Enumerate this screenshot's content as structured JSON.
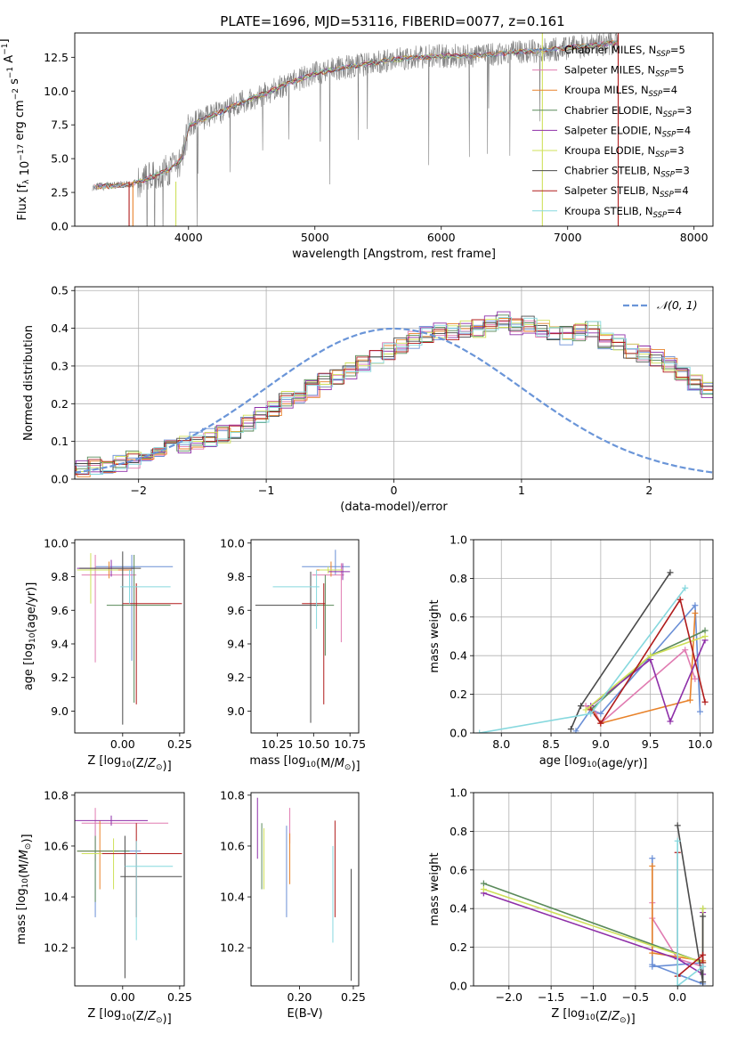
{
  "figure_title": "PLATE=1696, MJD=53116, FIBERID=0077, z=0.161",
  "colors": {
    "Chabrier MILES": "#6a8fd6",
    "Salpeter MILES": "#e07bb1",
    "Kroupa MILES": "#e8822a",
    "Chabrier ELODIE": "#5a8a5a",
    "Salpeter ELODIE": "#8e2fa8",
    "Kroupa ELODIE": "#cfe05a",
    "Chabrier STELIB": "#4a4a4a",
    "Salpeter STELIB": "#b01c1c",
    "Kroupa STELIB": "#86d8de",
    "data": "#808080",
    "normal_curve": "#6a95d8"
  },
  "chart_data": [
    {
      "type": "line",
      "panel": "spectrum",
      "title": "PLATE=1696, MJD=53116, FIBERID=0077, z=0.161",
      "xlabel": "wavelength [Angstrom, rest frame]",
      "ylabel": "Flux [f_λ 10^-17 erg cm^-2 s^-1 A^-1]",
      "xlim": [
        3100,
        8150
      ],
      "ylim": [
        0,
        14.3
      ],
      "xticks": [
        4000,
        5000,
        6000,
        7000,
        8000
      ],
      "yticks": [
        0.0,
        2.5,
        5.0,
        7.5,
        10.0,
        12.5
      ],
      "legend_position": "right",
      "legend": [
        {
          "label": "Chabrier MILES, N",
          "sub": "SSP",
          "eq": "=5"
        },
        {
          "label": "Salpeter MILES, N",
          "sub": "SSP",
          "eq": "=5"
        },
        {
          "label": "Kroupa MILES, N",
          "sub": "SSP",
          "eq": "=4"
        },
        {
          "label": "Chabrier ELODIE, N",
          "sub": "SSP",
          "eq": "=3"
        },
        {
          "label": "Salpeter ELODIE, N",
          "sub": "SSP",
          "eq": "=4"
        },
        {
          "label": "Kroupa ELODIE, N",
          "sub": "SSP",
          "eq": "=3"
        },
        {
          "label": "Chabrier STELIB, N",
          "sub": "SSP",
          "eq": "=3"
        },
        {
          "label": "Salpeter STELIB, N",
          "sub": "SSP",
          "eq": "=4"
        },
        {
          "label": "Kroupa STELIB, N",
          "sub": "SSP",
          "eq": "=4"
        }
      ],
      "continuum": {
        "x": [
          3240,
          3400,
          3550,
          3700,
          3850,
          3950,
          4000,
          4100,
          4250,
          4400,
          4600,
          4800,
          5000,
          5200,
          5400,
          5600,
          5800,
          6000,
          6200,
          6400,
          6600,
          6800,
          7000,
          7200,
          7400
        ],
        "y": [
          2.9,
          3.0,
          3.1,
          3.6,
          4.2,
          5.0,
          7.4,
          7.9,
          8.4,
          9.1,
          9.8,
          10.6,
          11.3,
          11.7,
          12.0,
          12.3,
          12.5,
          12.6,
          12.6,
          12.7,
          12.9,
          13.0,
          13.2,
          13.4,
          13.6
        ]
      },
      "model_edges": [
        3530,
        3560,
        3900,
        6800,
        7400
      ]
    },
    {
      "type": "bar",
      "panel": "residual histogram",
      "xlabel": "(data-model)/error",
      "ylabel": "Normed distribution",
      "xlim": [
        -2.5,
        2.5
      ],
      "ylim": [
        0,
        0.51
      ],
      "xticks": [
        -2,
        -1,
        0,
        1,
        2
      ],
      "yticks": [
        0.0,
        0.1,
        0.2,
        0.3,
        0.4,
        0.5
      ],
      "grid": true,
      "legend": "𝒩(0, 1)",
      "legend_position": "top-right",
      "bin_width": 0.1,
      "base_values": [
        0.02,
        0.025,
        0.03,
        0.035,
        0.04,
        0.045,
        0.05,
        0.06,
        0.07,
        0.08,
        0.09,
        0.1,
        0.11,
        0.12,
        0.13,
        0.15,
        0.17,
        0.19,
        0.21,
        0.22,
        0.24,
        0.26,
        0.27,
        0.29,
        0.31,
        0.32,
        0.34,
        0.35,
        0.37,
        0.38,
        0.39,
        0.39,
        0.4,
        0.4,
        0.41,
        0.42,
        0.4,
        0.41,
        0.4,
        0.39,
        0.38,
        0.39,
        0.4,
        0.37,
        0.36,
        0.34,
        0.33,
        0.32,
        0.3,
        0.28,
        0.26,
        0.24,
        0.22,
        0.2,
        0.19,
        0.17,
        0.15,
        0.13,
        0.12,
        0.1,
        0.09,
        0.08,
        0.07,
        0.06,
        0.055,
        0.05,
        0.045,
        0.04,
        0.035,
        0.03,
        0.025,
        0.02,
        0.02,
        0.015,
        0.015,
        0.01
      ]
    },
    {
      "type": "scatter",
      "panel": "age vs Z",
      "xlabel": "Z [log10(Z/Z☉)]",
      "ylabel": "age [log10(age/yr)]",
      "xlim": [
        -0.21,
        0.27
      ],
      "ylim": [
        8.87,
        10.02
      ],
      "xticks": [
        0.0,
        0.25
      ],
      "yticks": [
        9.0,
        9.2,
        9.4,
        9.6,
        9.8,
        10.0
      ],
      "points": [
        {
          "series": "Chabrier MILES",
          "x": 0.04,
          "xerr": [
            0.16,
            0.18
          ],
          "y": 9.86,
          "yerr": [
            0.56,
            0.07
          ]
        },
        {
          "series": "Salpeter MILES",
          "x": -0.12,
          "xerr": [
            0.06,
            0.18
          ],
          "y": 9.81,
          "yerr": [
            0.52,
            0.12
          ]
        },
        {
          "series": "Kroupa MILES",
          "x": -0.06,
          "xerr": [
            0.12,
            0.1
          ],
          "y": 9.84,
          "yerr": [
            0.05,
            0.05
          ]
        },
        {
          "series": "Chabrier ELODIE",
          "x": 0.05,
          "xerr": [
            0.12,
            0.16
          ],
          "y": 9.63,
          "yerr": [
            0.58,
            0.3
          ]
        },
        {
          "series": "Salpeter ELODIE",
          "x": -0.05,
          "xerr": [
            0.15,
            0.1
          ],
          "y": 9.85,
          "yerr": [
            0.05,
            0.05
          ]
        },
        {
          "series": "Kroupa ELODIE",
          "x": -0.14,
          "xerr": [
            0.06,
            0.12
          ],
          "y": 9.84,
          "yerr": [
            0.2,
            0.1
          ]
        },
        {
          "series": "Chabrier STELIB",
          "x": 0.0,
          "xerr": [
            0.19,
            0.08
          ],
          "y": 9.85,
          "yerr": [
            0.93,
            0.1
          ]
        },
        {
          "series": "Salpeter STELIB",
          "x": 0.06,
          "xerr": [
            0.06,
            0.2
          ],
          "y": 9.64,
          "yerr": [
            0.6,
            0.12
          ]
        },
        {
          "series": "Kroupa STELIB",
          "x": 0.03,
          "xerr": [
            0.04,
            0.18
          ],
          "y": 9.74,
          "yerr": [
            0.1,
            0.1
          ]
        }
      ]
    },
    {
      "type": "scatter",
      "panel": "age vs mass",
      "xlabel": "mass [log10(M/M☉)]",
      "ylabel": "",
      "xlim": [
        10.07,
        10.81
      ],
      "ylim": [
        8.87,
        10.02
      ],
      "xticks": [
        10.25,
        10.5,
        10.75
      ],
      "yticks": [
        9.0,
        9.2,
        9.4,
        9.6,
        9.8,
        10.0
      ],
      "points": [
        {
          "series": "Chabrier MILES",
          "x": 10.65,
          "xerr": [
            0.23,
            0.1
          ],
          "y": 9.86,
          "yerr": [
            0.05,
            0.1
          ]
        },
        {
          "series": "Salpeter MILES",
          "x": 10.69,
          "xerr": [
            0.2,
            0.02
          ],
          "y": 9.81,
          "yerr": [
            0.4,
            0.07
          ]
        },
        {
          "series": "Kroupa MILES",
          "x": 10.62,
          "xerr": [
            0.1,
            0.05
          ],
          "y": 9.84,
          "yerr": [
            0.04,
            0.05
          ]
        },
        {
          "series": "Chabrier ELODIE",
          "x": 10.58,
          "xerr": [
            0.08,
            0.06
          ],
          "y": 9.63,
          "yerr": [
            0.3,
            0.18
          ]
        },
        {
          "series": "Salpeter ELODIE",
          "x": 10.7,
          "xerr": [
            0.1,
            0.05
          ],
          "y": 9.83,
          "yerr": [
            0.05,
            0.05
          ]
        },
        {
          "series": "Kroupa ELODIE",
          "x": 10.6,
          "xerr": [
            0.06,
            0.1
          ],
          "y": 9.84,
          "yerr": [
            0.02,
            0.02
          ]
        },
        {
          "series": "Chabrier STELIB",
          "x": 10.48,
          "xerr": [
            0.38,
            0.05
          ],
          "y": 9.63,
          "yerr": [
            0.7,
            0.2
          ]
        },
        {
          "series": "Salpeter STELIB",
          "x": 10.57,
          "xerr": [
            0.15,
            0.01
          ],
          "y": 9.64,
          "yerr": [
            0.6,
            0.12
          ]
        },
        {
          "series": "Kroupa STELIB",
          "x": 10.52,
          "xerr": [
            0.3,
            0.02
          ],
          "y": 9.74,
          "yerr": [
            0.25,
            0.1
          ]
        }
      ]
    },
    {
      "type": "scatter",
      "panel": "mass weight vs age",
      "xlabel": "age [log10(age/yr)]",
      "ylabel": "mass weight",
      "xlim": [
        7.72,
        10.13
      ],
      "ylim": [
        0,
        1.0
      ],
      "xticks": [
        8.0,
        8.5,
        9.0,
        9.5,
        10.0
      ],
      "yticks": [
        0.0,
        0.2,
        0.4,
        0.6,
        0.8,
        1.0
      ],
      "grid": true,
      "series": [
        {
          "name": "Chabrier MILES",
          "x": [
            8.75,
            8.9,
            9.0,
            9.95,
            10.0
          ],
          "y": [
            0.01,
            0.12,
            0.1,
            0.66,
            0.11
          ]
        },
        {
          "name": "Salpeter MILES",
          "x": [
            8.85,
            8.95,
            9.0,
            9.85,
            9.95
          ],
          "y": [
            0.14,
            0.1,
            0.05,
            0.43,
            0.28
          ]
        },
        {
          "name": "Kroupa MILES",
          "x": [
            8.9,
            9.0,
            9.9,
            9.95
          ],
          "y": [
            0.13,
            0.05,
            0.17,
            0.62
          ]
        },
        {
          "name": "Chabrier ELODIE",
          "x": [
            8.9,
            9.5,
            10.05
          ],
          "y": [
            0.12,
            0.4,
            0.53
          ]
        },
        {
          "name": "Salpeter ELODIE",
          "x": [
            8.9,
            9.5,
            9.7,
            10.05
          ],
          "y": [
            0.14,
            0.38,
            0.06,
            0.48
          ]
        },
        {
          "name": "Kroupa ELODIE",
          "x": [
            8.85,
            9.5,
            10.05
          ],
          "y": [
            0.12,
            0.4,
            0.5
          ]
        },
        {
          "name": "Chabrier STELIB",
          "x": [
            8.7,
            8.8,
            9.7
          ],
          "y": [
            0.02,
            0.14,
            0.83
          ]
        },
        {
          "name": "Salpeter STELIB",
          "x": [
            8.9,
            9.0,
            9.8,
            10.05
          ],
          "y": [
            0.12,
            0.05,
            0.69,
            0.16
          ]
        },
        {
          "name": "Kroupa STELIB",
          "x": [
            7.78,
            8.9,
            9.85
          ],
          "y": [
            0.0,
            0.1,
            0.75
          ]
        }
      ]
    },
    {
      "type": "scatter",
      "panel": "mass vs Z",
      "xlabel": "Z [log10(Z/Z☉)]",
      "ylabel": "mass [log10(M/M☉)]",
      "xlim": [
        -0.21,
        0.27
      ],
      "ylim": [
        10.05,
        10.81
      ],
      "xticks": [
        0.0,
        0.25
      ],
      "yticks": [
        10.2,
        10.4,
        10.6,
        10.8
      ],
      "points": [
        {
          "series": "Chabrier MILES",
          "x": -0.12,
          "xerr": [
            0.08,
            0.2
          ],
          "y": 10.58,
          "yerr": [
            0.26,
            0.12
          ]
        },
        {
          "series": "Salpeter MILES",
          "x": -0.12,
          "xerr": [
            0.06,
            0.32
          ],
          "y": 10.69,
          "yerr": [
            0.15,
            0.06
          ]
        },
        {
          "series": "Kroupa MILES",
          "x": -0.1,
          "xerr": [
            0.1,
            0.08
          ],
          "y": 10.58,
          "yerr": [
            0.15,
            0.12
          ]
        },
        {
          "series": "Chabrier ELODIE",
          "x": -0.12,
          "xerr": [
            0.08,
            0.15
          ],
          "y": 10.58,
          "yerr": [
            0.2,
            0.06
          ]
        },
        {
          "series": "Salpeter ELODIE",
          "x": -0.05,
          "xerr": [
            0.18,
            0.16
          ],
          "y": 10.7,
          "yerr": [
            0.02,
            0.02
          ]
        },
        {
          "series": "Kroupa ELODIE",
          "x": -0.04,
          "xerr": [
            0.14,
            0.08
          ],
          "y": 10.57,
          "yerr": [
            0.14,
            0.06
          ]
        },
        {
          "series": "Chabrier STELIB",
          "x": 0.01,
          "xerr": [
            0.02,
            0.25
          ],
          "y": 10.48,
          "yerr": [
            0.4,
            0.16
          ]
        },
        {
          "series": "Salpeter STELIB",
          "x": 0.06,
          "xerr": [
            0.15,
            0.2
          ],
          "y": 10.57,
          "yerr": [
            0.25,
            0.12
          ]
        },
        {
          "series": "Kroupa STELIB",
          "x": 0.06,
          "xerr": [
            0.05,
            0.16
          ],
          "y": 10.52,
          "yerr": [
            0.29,
            0.1
          ]
        }
      ]
    },
    {
      "type": "scatter",
      "panel": "mass vs E(B-V)",
      "xlabel": "E(B-V)",
      "ylabel": "",
      "xlim": [
        0.155,
        0.255
      ],
      "ylim": [
        10.05,
        10.81
      ],
      "xticks": [
        0.2,
        0.25
      ],
      "yticks": [
        10.2,
        10.4,
        10.6,
        10.8
      ],
      "points": [
        {
          "series": "Chabrier MILES",
          "x": 0.188,
          "y": 10.5,
          "yerr": [
            0.18,
            0.18
          ]
        },
        {
          "series": "Salpeter MILES",
          "x": 0.191,
          "y": 10.68,
          "yerr": [
            0.07,
            0.07
          ]
        },
        {
          "series": "Kroupa MILES",
          "x": 0.191,
          "y": 10.55,
          "yerr": [
            0.1,
            0.1
          ]
        },
        {
          "series": "Chabrier ELODIE",
          "x": 0.165,
          "y": 10.56,
          "yerr": [
            0.13,
            0.13
          ]
        },
        {
          "series": "Salpeter ELODIE",
          "x": 0.161,
          "y": 10.67,
          "yerr": [
            0.12,
            0.12
          ]
        },
        {
          "series": "Kroupa ELODIE",
          "x": 0.167,
          "y": 10.55,
          "yerr": [
            0.12,
            0.12
          ]
        },
        {
          "series": "Chabrier STELIB",
          "x": 0.248,
          "y": 10.29,
          "yerr": [
            0.22,
            0.22
          ]
        },
        {
          "series": "Salpeter STELIB",
          "x": 0.233,
          "y": 10.51,
          "yerr": [
            0.19,
            0.19
          ]
        },
        {
          "series": "Kroupa STELIB",
          "x": 0.231,
          "y": 10.41,
          "yerr": [
            0.19,
            0.19
          ]
        }
      ]
    },
    {
      "type": "scatter",
      "panel": "mass weight vs Z",
      "xlabel": "Z [log10(Z/Z☉)]",
      "ylabel": "mass weight",
      "xlim": [
        -2.42,
        0.42
      ],
      "ylim": [
        0,
        1.0
      ],
      "xticks": [
        -2.0,
        -1.5,
        -1.0,
        -0.5,
        0.0
      ],
      "yticks": [
        0.0,
        0.2,
        0.4,
        0.6,
        0.8,
        1.0
      ],
      "grid": true,
      "series": [
        {
          "name": "Chabrier MILES",
          "x": [
            -0.3,
            -0.3,
            0.3,
            0.3,
            -0.3
          ],
          "y": [
            0.66,
            0.11,
            0.01,
            0.12,
            0.1
          ]
        },
        {
          "name": "Salpeter MILES",
          "x": [
            -0.3,
            -0.3,
            0.0,
            0.3
          ],
          "y": [
            0.43,
            0.35,
            0.14,
            0.1
          ]
        },
        {
          "name": "Kroupa MILES",
          "x": [
            -0.3,
            -0.3,
            0.3
          ],
          "y": [
            0.62,
            0.17,
            0.13
          ]
        },
        {
          "name": "Chabrier ELODIE",
          "x": [
            -2.3,
            0.3,
            0.3
          ],
          "y": [
            0.53,
            0.12,
            0.4
          ]
        },
        {
          "name": "Salpeter ELODIE",
          "x": [
            -2.3,
            0.0,
            0.3,
            0.3
          ],
          "y": [
            0.48,
            0.14,
            0.06,
            0.38
          ]
        },
        {
          "name": "Kroupa ELODIE",
          "x": [
            -2.3,
            0.3,
            0.3
          ],
          "y": [
            0.5,
            0.12,
            0.4
          ]
        },
        {
          "name": "Chabrier STELIB",
          "x": [
            0.0,
            0.3,
            0.3
          ],
          "y": [
            0.83,
            0.02,
            0.36
          ]
        },
        {
          "name": "Salpeter STELIB",
          "x": [
            0.0,
            0.0,
            0.3,
            0.3
          ],
          "y": [
            0.69,
            0.05,
            0.16,
            0.12
          ]
        },
        {
          "name": "Kroupa STELIB",
          "x": [
            0.0,
            0.0,
            0.3
          ],
          "y": [
            0.75,
            0.0,
            0.1
          ]
        }
      ]
    }
  ]
}
